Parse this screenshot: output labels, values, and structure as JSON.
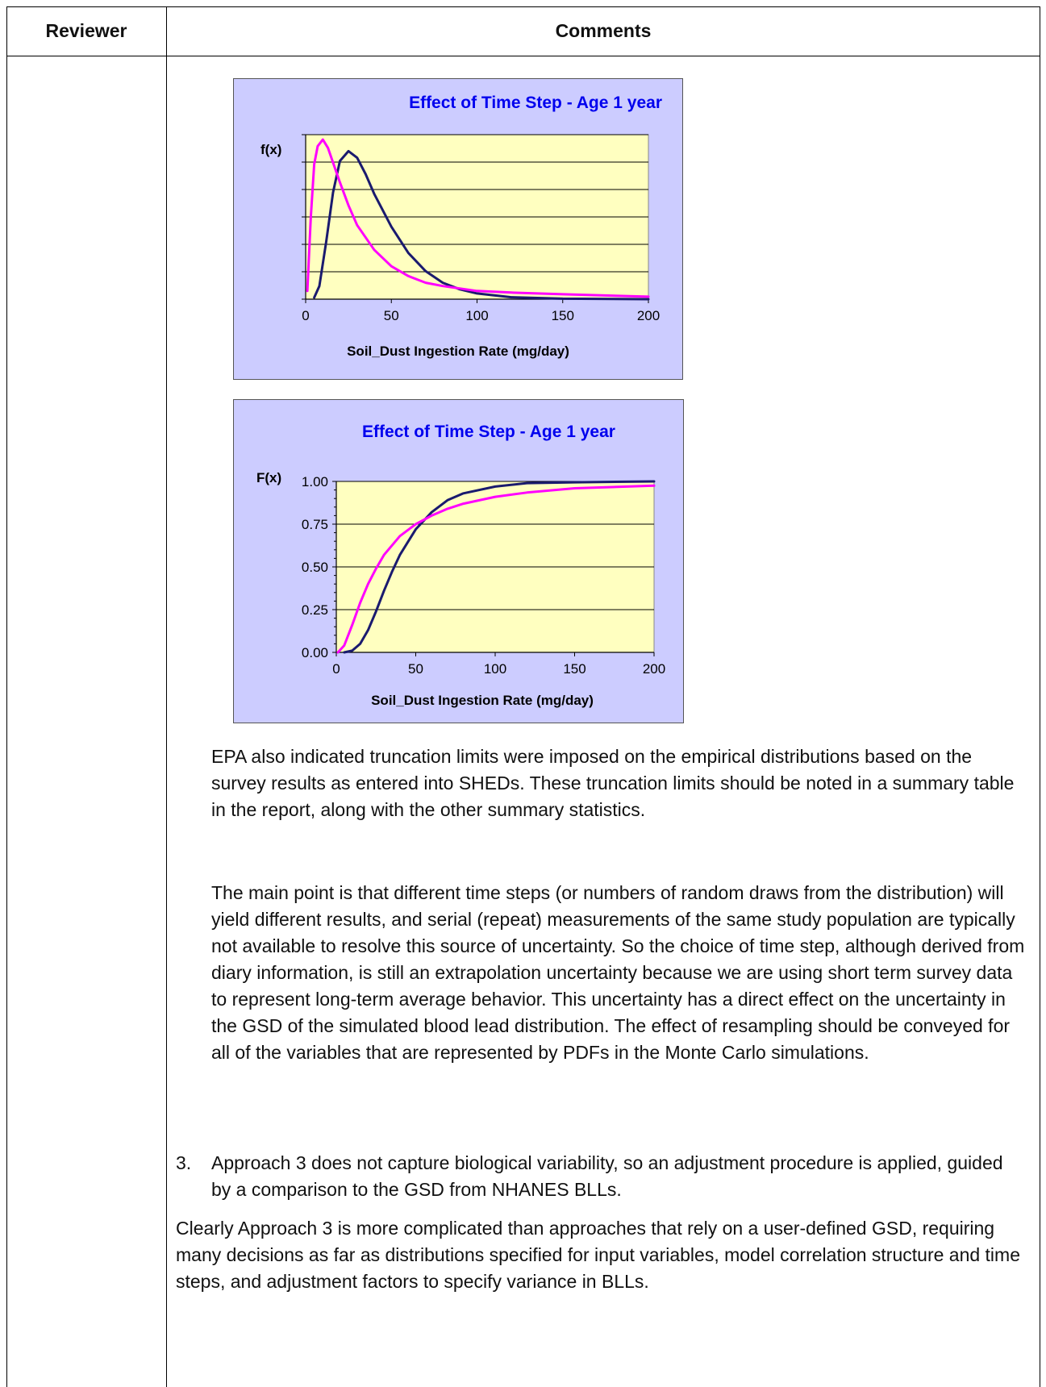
{
  "table": {
    "header_reviewer": "Reviewer",
    "header_comments": "Comments"
  },
  "charts_text": {
    "pdf_title": "Effect of Time Step - Age 1 year",
    "pdf_ylabel": "f(x)",
    "pdf_xlabel": "Soil_Dust  Ingestion  Rate (mg/day)",
    "cdf_title": "Effect of Time Step - Age 1 year",
    "cdf_ylabel": "F(x)",
    "cdf_xlabel": "Soil_Dust Ingestion Rate (mg/day)"
  },
  "chart_data": [
    {
      "type": "line",
      "title": "Effect of Time Step - Age 1 year",
      "ylabel": "f(x)",
      "xlabel": "Soil_Dust  Ingestion  Rate (mg/day)",
      "xlim": [
        0,
        200
      ],
      "ylim": [
        0,
        1
      ],
      "x_ticks": [
        "0",
        "50",
        "100",
        "150",
        "200"
      ],
      "y_ticks": [],
      "grid": "horizontal",
      "series": [
        {
          "color": "#1a1a6e",
          "x": [
            5,
            8,
            12,
            16,
            20,
            25,
            30,
            35,
            40,
            50,
            60,
            70,
            80,
            90,
            100,
            120,
            150,
            200
          ],
          "y": [
            0.01,
            0.08,
            0.35,
            0.65,
            0.84,
            0.9,
            0.86,
            0.76,
            0.64,
            0.44,
            0.28,
            0.17,
            0.1,
            0.06,
            0.035,
            0.012,
            0.003,
            0.0
          ]
        },
        {
          "color": "#ff00ff",
          "x": [
            1,
            3,
            5,
            7,
            10,
            13,
            16,
            20,
            25,
            30,
            40,
            50,
            60,
            70,
            80,
            100,
            120,
            150,
            200
          ],
          "y": [
            0.05,
            0.5,
            0.82,
            0.93,
            0.97,
            0.92,
            0.83,
            0.71,
            0.57,
            0.45,
            0.3,
            0.2,
            0.14,
            0.1,
            0.08,
            0.05,
            0.04,
            0.03,
            0.015
          ]
        }
      ]
    },
    {
      "type": "line",
      "title": "Effect of Time Step - Age 1 year",
      "ylabel": "F(x)",
      "xlabel": "Soil_Dust Ingestion Rate (mg/day)",
      "xlim": [
        0,
        200
      ],
      "ylim": [
        0,
        1
      ],
      "x_ticks": [
        "0",
        "50",
        "100",
        "150",
        "200"
      ],
      "y_ticks": [
        "0.00",
        "0.25",
        "0.50",
        "0.75",
        "1.00"
      ],
      "grid": "horizontal",
      "series": [
        {
          "color": "#1a1a6e",
          "x": [
            5,
            10,
            15,
            20,
            25,
            30,
            35,
            40,
            50,
            60,
            70,
            80,
            100,
            120,
            150,
            200
          ],
          "y": [
            0.0,
            0.01,
            0.05,
            0.13,
            0.24,
            0.36,
            0.47,
            0.57,
            0.72,
            0.82,
            0.89,
            0.93,
            0.97,
            0.99,
            0.995,
            1.0
          ]
        },
        {
          "color": "#ff00ff",
          "x": [
            1,
            5,
            10,
            15,
            20,
            25,
            30,
            40,
            50,
            60,
            70,
            80,
            100,
            120,
            150,
            200
          ],
          "y": [
            0.0,
            0.04,
            0.16,
            0.29,
            0.4,
            0.49,
            0.57,
            0.68,
            0.75,
            0.8,
            0.84,
            0.87,
            0.91,
            0.935,
            0.96,
            0.975
          ]
        }
      ]
    }
  ],
  "body": {
    "para1": "EPA also indicated truncation limits were imposed on the empirical distributions based on the survey results as entered into SHEDs. These truncation limits should be noted in a summary table in the report, along with the other summary statistics.",
    "para2": "The main point is that different time steps (or numbers of random draws from the distribution) will yield different results, and serial (repeat) measurements of the same study population are typically not available to resolve this source of uncertainty. So the choice of time step, although derived from diary information, is still an extrapolation uncertainty because we are using short term survey data to represent long-term average behavior. This uncertainty has a direct effect on the uncertainty in the GSD of the simulated blood lead distribution. The effect of resampling should be conveyed for all of the variables that are represented by PDFs in the Monte Carlo simulations.",
    "item3_number": "3.",
    "item3_text": "Approach 3 does not capture biological variability, so an adjustment procedure is applied, guided by a comparison to the GSD from NHANES BLLs.",
    "para3": "Clearly Approach 3 is more complicated than approaches that rely on a user-defined GSD, requiring many decisions as far as distributions specified for input variables, model correlation structure and time steps, and adjustment factors to specify variance in BLLs."
  }
}
